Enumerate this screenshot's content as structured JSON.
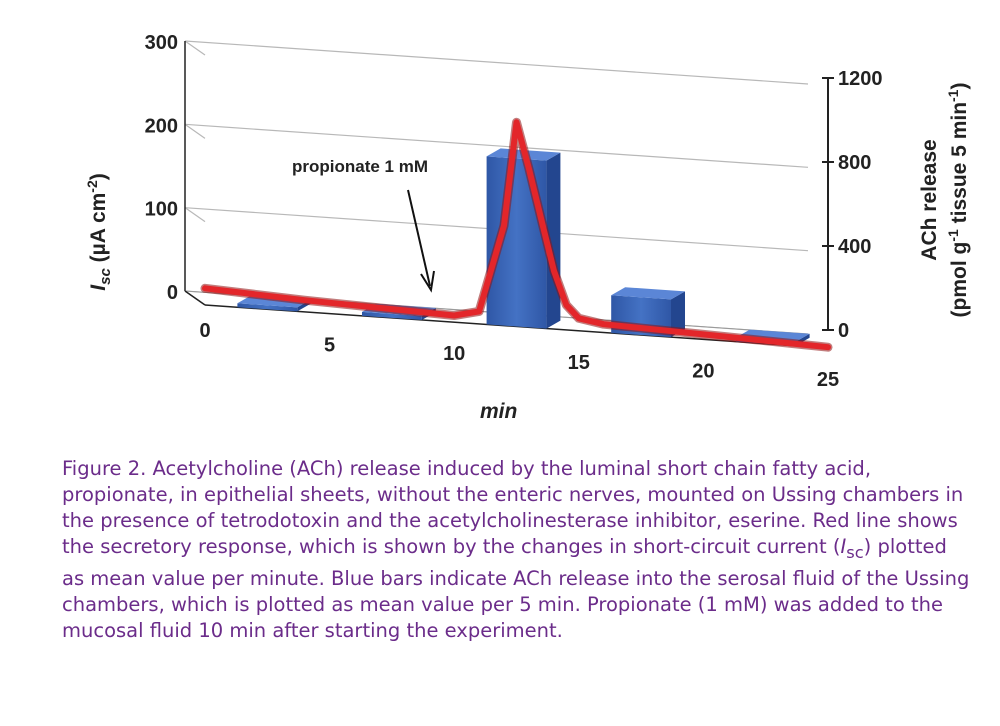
{
  "chart_data": {
    "type": "bar+line",
    "xlabel": "min",
    "xticks": [
      "0",
      "5",
      "10",
      "15",
      "20",
      "25"
    ],
    "xlim": [
      0,
      25
    ],
    "left_axis": {
      "label_main": "I",
      "label_sub": "sc",
      "label_tail": " (µA cm",
      "label_sup": "-2",
      "label_close": ")",
      "ticks": [
        "0",
        "100",
        "200",
        "300"
      ],
      "ylim": [
        0,
        300
      ]
    },
    "right_axis": {
      "label_line1": "ACh release",
      "label_line2_a": "(pmol g",
      "label_line2_sup1": "-1",
      "label_line2_b": " tissue 5 min",
      "label_line2_sup2": "-1",
      "label_line2_c": ")",
      "ticks": [
        "0",
        "400",
        "800",
        "1200"
      ],
      "ylim": [
        0,
        1200
      ]
    },
    "bars": {
      "series_color": "#3a64b8",
      "x_center": [
        2.5,
        7.5,
        12.5,
        17.5,
        22.5
      ],
      "values": [
        10,
        10,
        800,
        180,
        10
      ]
    },
    "line": {
      "series_color": "#e3262a",
      "x": [
        0,
        2,
        4,
        6,
        8,
        10,
        11,
        12,
        12.5,
        13,
        13.5,
        14,
        14.5,
        15,
        16,
        18,
        20,
        22,
        24,
        25
      ],
      "y": [
        20,
        17,
        14,
        12,
        10,
        8,
        15,
        120,
        245,
        190,
        130,
        70,
        30,
        15,
        10,
        8,
        6,
        4,
        2,
        1
      ]
    },
    "annotation": {
      "text": "propionate 1 mM",
      "at_x": 10
    },
    "grid": "horizontal, major",
    "style": "3-D perspective"
  },
  "caption": {
    "p1": "Figure 2. Acetylcholine (ACh) release induced by the luminal short chain fatty acid, propionate, in epithelial sheets, without the enteric nerves, mounted on Ussing chambers in the presence of tetrodotoxin and the acetylcholinesterase inhibitor, eserine. Red line shows the secretory response, which is shown by the changes in short-circuit current (",
    "isc_i": "I",
    "isc_sub": "sc",
    "p2": ") plotted as mean value per minute. Blue bars indicate ACh release into the serosal fluid of the Ussing chambers, which is plotted as mean value per 5 min. Propionate (1 m",
    "mm_sc": "M",
    "p3": ") was added to the mucosal fluid 10 min after starting the experiment."
  }
}
